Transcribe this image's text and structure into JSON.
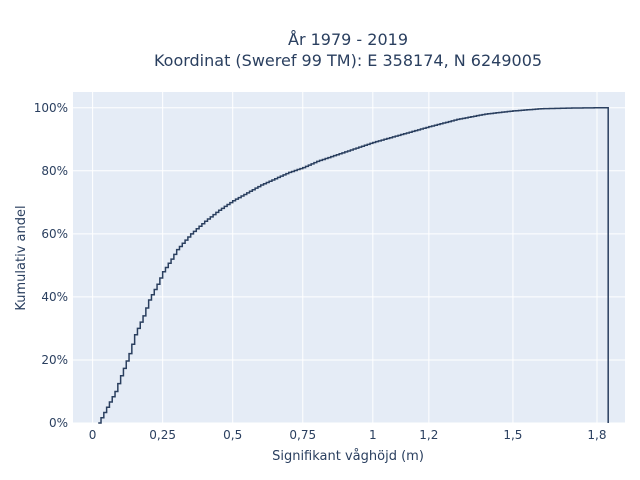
{
  "chart_data": {
    "type": "line",
    "subtype": "ecdf-step",
    "title_line1": "År 1979 - 2019",
    "title_line2": "Koordinat (Sweref 99 TM): E 358174, N 6249005",
    "xlabel": "Signifikant våghöjd (m)",
    "ylabel": "Kumulativ andel",
    "xlim": [
      -0.07,
      1.9
    ],
    "ylim": [
      0,
      1.05
    ],
    "x_ticks": [
      0,
      0.25,
      0.5,
      0.75,
      1,
      1.2,
      1.5,
      1.8
    ],
    "x_tick_labels": [
      "0",
      "0,25",
      "0,5",
      "0,75",
      "1",
      "1,2",
      "1,5",
      "1,8"
    ],
    "y_ticks": [
      0,
      0.2,
      0.4,
      0.6,
      0.8,
      1.0
    ],
    "y_tick_labels": [
      "0%",
      "20%",
      "40%",
      "60%",
      "80%",
      "100%"
    ],
    "grid": true,
    "line_color": "#2a3f5f",
    "plot_background": "#e5ecf6",
    "series": [
      {
        "x": [
          0.02,
          0.05,
          0.08,
          0.1,
          0.13,
          0.15,
          0.18,
          0.2,
          0.23,
          0.25,
          0.28,
          0.3,
          0.35,
          0.4,
          0.45,
          0.5,
          0.6,
          0.7,
          0.75,
          0.8,
          0.9,
          1.0,
          1.1,
          1.2,
          1.3,
          1.4,
          1.5,
          1.6,
          1.7,
          1.8,
          1.84
        ],
        "y": [
          0.0,
          0.05,
          0.1,
          0.15,
          0.22,
          0.28,
          0.34,
          0.39,
          0.44,
          0.48,
          0.52,
          0.55,
          0.6,
          0.64,
          0.675,
          0.705,
          0.755,
          0.795,
          0.81,
          0.83,
          0.86,
          0.89,
          0.915,
          0.94,
          0.963,
          0.98,
          0.99,
          0.997,
          0.999,
          1.0,
          1.0
        ]
      }
    ]
  }
}
